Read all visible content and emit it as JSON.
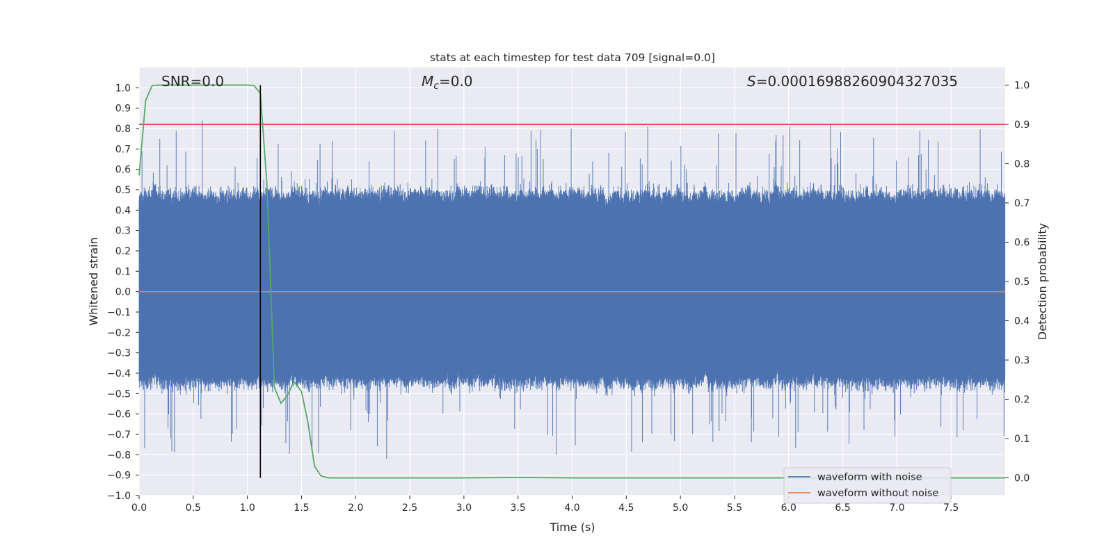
{
  "chart_data": {
    "type": "line",
    "title": "stats at each timestep for test data 709 [signal=0.0]",
    "xlabel": "Time (s)",
    "ylabel": "Whitened strain",
    "y2label": "Detection probability",
    "xlim": [
      0.0,
      8.0
    ],
    "ylim": [
      -1.0,
      1.1
    ],
    "y2lim": [
      -0.045,
      1.045
    ],
    "xticks": [
      0.0,
      0.5,
      1.0,
      1.5,
      2.0,
      2.5,
      3.0,
      3.5,
      4.0,
      4.5,
      5.0,
      5.5,
      6.0,
      6.5,
      7.0,
      7.5
    ],
    "xtick_labels": [
      "0.0",
      "0.5",
      "1.0",
      "1.5",
      "2.0",
      "2.5",
      "3.0",
      "3.5",
      "4.0",
      "4.5",
      "5.0",
      "5.5",
      "6.0",
      "6.5",
      "7.0",
      "7.5"
    ],
    "yticks": [
      1.0,
      0.9,
      0.8,
      0.7,
      0.6,
      0.5,
      0.4,
      0.3,
      0.2,
      0.1,
      0.0,
      -0.1,
      -0.2,
      -0.3,
      -0.4,
      -0.5,
      -0.6,
      -0.7,
      -0.8,
      -0.9,
      -1.0
    ],
    "ytick_labels": [
      "1.0",
      "0.9",
      "0.8",
      "0.7",
      "0.6",
      "0.5",
      "0.4",
      "0.3",
      "0.2",
      "0.1",
      "0.0",
      "−0.1",
      "−0.2",
      "−0.3",
      "−0.4",
      "−0.5",
      "−0.6",
      "−0.7",
      "−0.8",
      "−0.9",
      "−1.0"
    ],
    "y2ticks": [
      1.0,
      0.9,
      0.8,
      0.7,
      0.6,
      0.5,
      0.4,
      0.3,
      0.2,
      0.1,
      0.0
    ],
    "y2tick_labels": [
      "1.0",
      "0.9",
      "0.8",
      "0.7",
      "0.6",
      "0.5",
      "0.4",
      "0.3",
      "0.2",
      "0.1",
      "0.0"
    ],
    "grid": true,
    "legend_position": "bottom-right",
    "annotations": {
      "snr": "SNR=0.0",
      "mc_symbol": "M",
      "mc_sub": "c",
      "mc_value": "=0.0",
      "s_symbol": "S",
      "s_value": "=0.00016988260904327035"
    },
    "series": [
      {
        "name": "waveform with noise",
        "color": "#4c72b0",
        "kind": "noise_band",
        "approx_max": 1.0,
        "approx_min": -0.91
      },
      {
        "name": "waveform without noise",
        "color": "#dd8452",
        "x": [
          0.0,
          8.0
        ],
        "y": [
          0.0,
          0.0
        ]
      },
      {
        "color": "#55a868",
        "axis": "right",
        "x": [
          0.0,
          0.06,
          0.12,
          0.18,
          0.25,
          0.5,
          0.75,
          1.0,
          1.06,
          1.12,
          1.18,
          1.25,
          1.31,
          1.37,
          1.43,
          1.5,
          1.56,
          1.62,
          1.68,
          1.75,
          2.0,
          3.0,
          3.5,
          4.0,
          5.0,
          6.0,
          7.0,
          8.0
        ],
        "y": [
          0.77,
          0.96,
          0.999,
          1.0,
          1.0,
          1.0,
          1.0,
          1.0,
          0.999,
          0.979,
          0.75,
          0.23,
          0.19,
          0.21,
          0.245,
          0.22,
          0.14,
          0.03,
          0.005,
          0.0,
          0.0,
          0.0,
          0.001,
          0.0,
          0.0,
          0.0,
          0.0,
          0.0
        ]
      },
      {
        "color": "#d62728",
        "axis": "right",
        "x": [
          0.0,
          8.0
        ],
        "y": [
          0.9,
          0.9
        ]
      },
      {
        "color": "#000000",
        "axis": "right",
        "x": [
          1.12,
          1.12
        ],
        "y": [
          0.0,
          1.0
        ]
      }
    ]
  }
}
